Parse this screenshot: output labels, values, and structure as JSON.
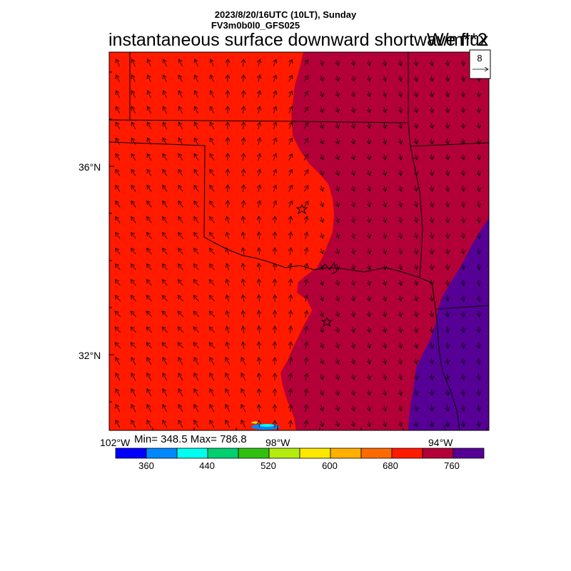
{
  "header": {
    "line1": "2023/8/20/16UTC (10LT), Sunday",
    "line2": "FV3m0b0l0_GFS025"
  },
  "title": "instantaneous surface downward shortwave flux",
  "units": "W/m**2",
  "stats": "Min= 348.5 Max= 786.8",
  "vector_legend": {
    "value": "8"
  },
  "axes": {
    "lat_labels": [
      "36°N",
      "32°N"
    ],
    "lon_labels": [
      "102°W",
      "98°W",
      "94°W"
    ]
  },
  "colorbar": {
    "colors": [
      "#0000ff",
      "#0088ff",
      "#00ffee",
      "#00d070",
      "#30c010",
      "#b4ec10",
      "#ffe800",
      "#ffb000",
      "#ff6a00",
      "#ff1a00",
      "#b40038",
      "#560096"
    ],
    "tick_labels": [
      "360",
      "440",
      "520",
      "600",
      "680",
      "760"
    ]
  },
  "regions": {
    "colors": {
      "low": "#ff1a00",
      "mid": "#b40038",
      "high": "#560096",
      "spot1": "#0088ff",
      "spot2": "#00ffee",
      "spot3": "#ffe800"
    }
  },
  "markers": [
    "star",
    "star"
  ]
}
